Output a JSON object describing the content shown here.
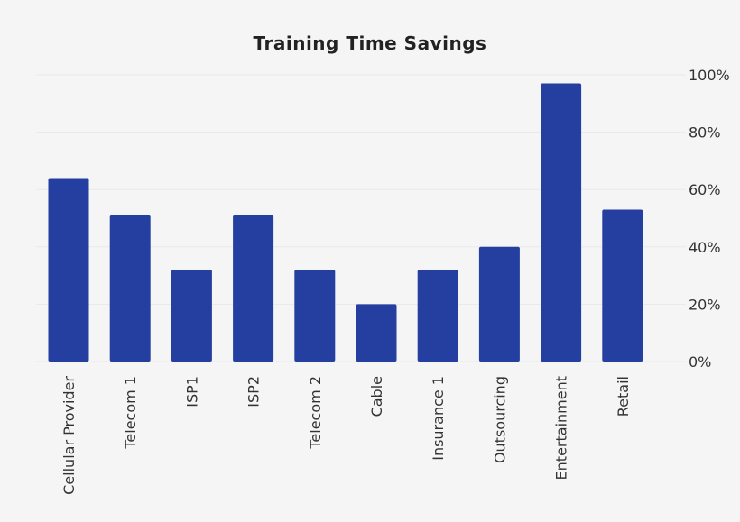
{
  "chart_data": {
    "type": "bar",
    "title": "Training Time Savings",
    "categories": [
      "Cellular Provider",
      "Telecom 1",
      "ISP1",
      "ISP2",
      "Telecom 2",
      "Cable",
      "Insurance 1",
      "Outsourcing",
      "Entertainment",
      "Retail"
    ],
    "values": [
      64,
      51,
      32,
      51,
      32,
      20,
      32,
      40,
      97,
      53
    ],
    "unit": "%",
    "ylim": [
      0,
      100
    ],
    "yticks": [
      0,
      20,
      40,
      60,
      80,
      100
    ],
    "ytick_labels": [
      "0%",
      "20%",
      "40%",
      "60%",
      "80%",
      "100%"
    ],
    "y_axis_side": "right",
    "grid": true,
    "bar_color": "#243f9f",
    "grid_color": "#e9e9ea",
    "background": "#f5f5f6"
  }
}
